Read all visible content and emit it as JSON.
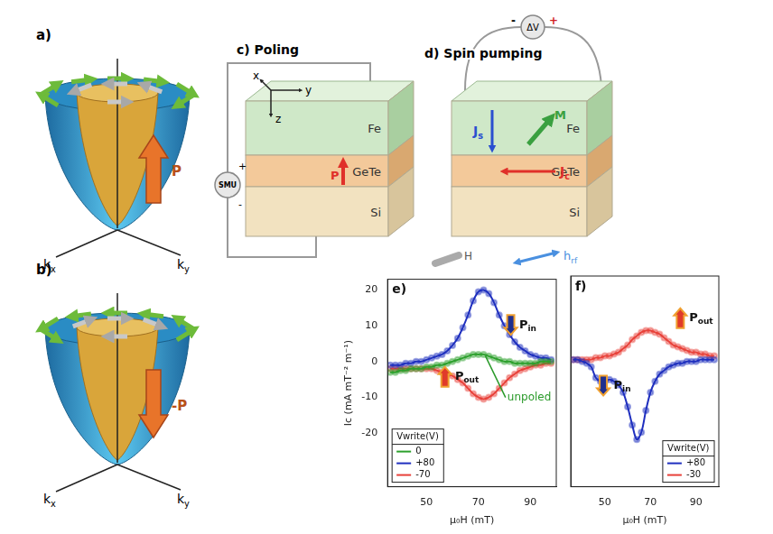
{
  "panels": {
    "a": {
      "label": "a)",
      "polarization": "P",
      "axes": [
        "kx",
        "ky"
      ]
    },
    "b": {
      "label": "b)",
      "polarization": "-P",
      "axes": [
        "kx",
        "ky"
      ]
    },
    "c": {
      "label": "c) Poling",
      "source": "SMU",
      "source_signs": [
        "+",
        "-"
      ],
      "axes": [
        "x",
        "y",
        "z"
      ],
      "layers": [
        "Fe",
        "GeTe",
        "Si"
      ],
      "polarization": "P"
    },
    "d": {
      "label": "d) Spin pumping",
      "meter": "ΔV",
      "meter_signs": [
        "-",
        "+"
      ],
      "layers": [
        "Fe",
        "GeTe",
        "Si"
      ],
      "vectors": [
        "Js",
        "Jc",
        "M"
      ],
      "fields": [
        "H",
        "hrf"
      ]
    }
  },
  "chart_data": [
    {
      "type": "line",
      "title": "e)",
      "x_label": "μ₀H (mT)",
      "y_label": "Ic (mA mT⁻² m⁻¹)",
      "x": [
        36,
        38,
        40,
        42,
        44,
        46,
        48,
        50,
        52,
        54,
        56,
        58,
        60,
        62,
        64,
        66,
        68,
        70,
        72,
        74,
        76,
        78,
        80,
        82,
        84,
        86,
        88,
        90,
        92,
        94,
        96,
        98
      ],
      "xlim": [
        35,
        100
      ],
      "xticks": [
        50,
        70,
        90
      ],
      "ylim": [
        -35,
        23
      ],
      "yticks": [
        -20,
        -10,
        0,
        10,
        20
      ],
      "grid": false,
      "legend": "lower left",
      "legend_title": "Vwrite(V)",
      "marker": "circle",
      "series": [
        {
          "name": "0",
          "color": "#2ca02c",
          "values": [
            -3,
            -3,
            -2.5,
            -2.5,
            -2,
            -2,
            -2,
            -1.5,
            -1.5,
            -1,
            -1,
            -0.5,
            0,
            0.5,
            1,
            1.5,
            2,
            2,
            2,
            1.5,
            1,
            0.5,
            0,
            0,
            -0.5,
            -0.5,
            -0.5,
            -0.5,
            -0.5,
            0,
            0,
            0
          ]
        },
        {
          "name": "+80",
          "color": "#1f2fbf",
          "values": [
            -1,
            -1,
            -1,
            -0.5,
            -0.5,
            0,
            0,
            0.5,
            1,
            1.5,
            2,
            3,
            4.5,
            6.5,
            9.5,
            13,
            17,
            19.5,
            20,
            19,
            16.5,
            13,
            10,
            7.5,
            5.5,
            4,
            3,
            2,
            1.5,
            1,
            1,
            0.5
          ]
        },
        {
          "name": "-70",
          "color": "#e8413a",
          "values": [
            -2,
            -2,
            -2,
            -2,
            -2,
            -2,
            -2,
            -2,
            -2,
            -2.5,
            -3,
            -3.5,
            -4,
            -5,
            -6,
            -7.5,
            -9,
            -10,
            -10.5,
            -10,
            -9,
            -7.5,
            -6,
            -4.5,
            -3.5,
            -2.5,
            -2,
            -1.5,
            -1,
            -1,
            -0.5,
            -0.5
          ]
        }
      ],
      "annotations": [
        "Pin",
        "Pout",
        "unpoled"
      ]
    },
    {
      "type": "line",
      "title": "f)",
      "x_label": "μ₀H (mT)",
      "x": [
        36,
        38,
        40,
        42,
        44,
        46,
        48,
        50,
        52,
        54,
        56,
        58,
        60,
        62,
        64,
        66,
        68,
        70,
        72,
        74,
        76,
        78,
        80,
        82,
        84,
        86,
        88,
        90,
        92,
        94,
        96,
        98
      ],
      "xlim": [
        35,
        100
      ],
      "xticks": [
        50,
        70,
        90
      ],
      "ylim": [
        -35,
        23
      ],
      "yticks": [
        -20,
        -10,
        0,
        10,
        20
      ],
      "grid": false,
      "legend": "lower right",
      "legend_title": "Vwrite(V)",
      "marker": "circle",
      "tick_labels": "x",
      "series": [
        {
          "name": "+80",
          "color": "#1f2fbf",
          "values": [
            0,
            0,
            -0.5,
            -1,
            -2,
            -5,
            -6,
            -6,
            -5.5,
            -6,
            -7,
            -9,
            -13,
            -18,
            -22,
            -20,
            -14,
            -9,
            -6,
            -4,
            -3,
            -2,
            -1.5,
            -1,
            -1,
            -0.5,
            -0.5,
            -0.5,
            0,
            0,
            0,
            0
          ]
        },
        {
          "name": "-30",
          "color": "#e8413a",
          "values": [
            0,
            0,
            0,
            0,
            0,
            0.5,
            0.5,
            1,
            1,
            1.5,
            2,
            3,
            4,
            5.5,
            6.5,
            7.5,
            8,
            8,
            7.5,
            7,
            6,
            5,
            4,
            3.5,
            3,
            2.5,
            2,
            2,
            1.5,
            1.5,
            1,
            1
          ]
        }
      ],
      "annotations": [
        "Pin",
        "Pout"
      ]
    }
  ]
}
